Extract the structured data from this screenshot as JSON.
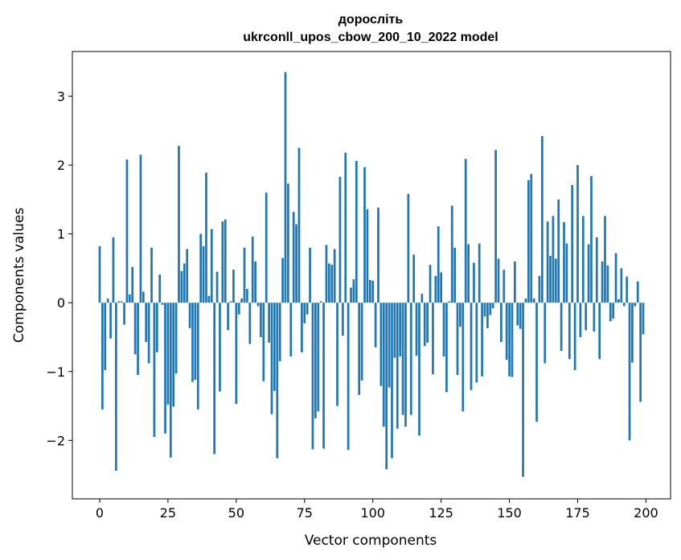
{
  "chart_data": {
    "type": "bar",
    "title": "доросліть",
    "subtitle": "ukrconll_upos_cbow_200_10_2022 model",
    "xlabel": "Vector components",
    "ylabel": "Components values",
    "xlim": [
      -10,
      209
    ],
    "ylim": [
      -2.85,
      3.65
    ],
    "xticks": [
      0,
      25,
      50,
      75,
      100,
      125,
      150,
      175,
      200
    ],
    "yticks": [
      -2,
      -1,
      0,
      1,
      2,
      3
    ],
    "ytick_labels": [
      "−2",
      "−1",
      "0",
      "1",
      "2",
      "3"
    ],
    "bar_color": "#1f77b4",
    "grid": false,
    "x": [
      0,
      1,
      2,
      3,
      4,
      5,
      6,
      7,
      8,
      9,
      10,
      11,
      12,
      13,
      14,
      15,
      16,
      17,
      18,
      19,
      20,
      21,
      22,
      23,
      24,
      25,
      26,
      27,
      28,
      29,
      30,
      31,
      32,
      33,
      34,
      35,
      36,
      37,
      38,
      39,
      40,
      41,
      42,
      43,
      44,
      45,
      46,
      47,
      48,
      49,
      50,
      51,
      52,
      53,
      54,
      55,
      56,
      57,
      58,
      59,
      60,
      61,
      62,
      63,
      64,
      65,
      66,
      67,
      68,
      69,
      70,
      71,
      72,
      73,
      74,
      75,
      76,
      77,
      78,
      79,
      80,
      81,
      82,
      83,
      84,
      85,
      86,
      87,
      88,
      89,
      90,
      91,
      92,
      93,
      94,
      95,
      96,
      97,
      98,
      99,
      100,
      101,
      102,
      103,
      104,
      105,
      106,
      107,
      108,
      109,
      110,
      111,
      112,
      113,
      114,
      115,
      116,
      117,
      118,
      119,
      120,
      121,
      122,
      123,
      124,
      125,
      126,
      127,
      128,
      129,
      130,
      131,
      132,
      133,
      134,
      135,
      136,
      137,
      138,
      139,
      140,
      141,
      142,
      143,
      144,
      145,
      146,
      147,
      148,
      149,
      150,
      151,
      152,
      153,
      154,
      155,
      156,
      157,
      158,
      159,
      160,
      161,
      162,
      163,
      164,
      165,
      166,
      167,
      168,
      169,
      170,
      171,
      172,
      173,
      174,
      175,
      176,
      177,
      178,
      179,
      180,
      181,
      182,
      183,
      184,
      185,
      186,
      187,
      188,
      189,
      190,
      191,
      192,
      193,
      194,
      195,
      196,
      197,
      198,
      199
    ],
    "values": [
      0.82,
      -1.55,
      -0.98,
      0.06,
      -0.52,
      0.95,
      -2.44,
      0.02,
      0.02,
      -0.32,
      2.08,
      0.12,
      0.52,
      -0.75,
      -1.05,
      2.15,
      0.16,
      -0.57,
      -0.88,
      0.8,
      -1.95,
      -0.72,
      0.41,
      -0.03,
      -1.9,
      -1.48,
      -2.25,
      -1.51,
      -1.03,
      2.28,
      0.46,
      0.57,
      0.78,
      -0.37,
      -1.15,
      -1.12,
      -1.55,
      1.0,
      0.82,
      1.89,
      0.1,
      1.07,
      -2.2,
      0.45,
      -1.29,
      1.18,
      1.21,
      -0.4,
      0.02,
      0.48,
      -1.47,
      -0.17,
      0.06,
      0.8,
      0.2,
      -0.6,
      0.96,
      0.6,
      -0.05,
      -0.5,
      -1.14,
      1.6,
      -0.58,
      -1.62,
      -1.28,
      -2.26,
      -0.85,
      0.65,
      3.35,
      1.73,
      -0.78,
      1.32,
      1.14,
      2.25,
      -0.72,
      -0.3,
      -0.17,
      0.8,
      -2.13,
      -1.68,
      -1.58,
      0.02,
      -2.12,
      0.84,
      0.57,
      0.55,
      0.78,
      -1.5,
      1.83,
      -0.48,
      2.18,
      -2.14,
      0.22,
      0.34,
      2.06,
      -1.34,
      -1.13,
      1.97,
      1.36,
      0.33,
      0.32,
      -0.65,
      1.38,
      -1.21,
      -1.8,
      -2.42,
      -1.23,
      -2.26,
      -0.8,
      -1.83,
      -0.78,
      -1.63,
      -1.8,
      1.58,
      -1.63,
      0.7,
      -0.77,
      -1.93,
      0.13,
      -0.63,
      -0.58,
      0.55,
      -1.04,
      0.39,
      1.11,
      0.44,
      -0.78,
      -1.3,
      0.02,
      1.41,
      0.8,
      -1.05,
      -0.35,
      -1.58,
      2.09,
      0.85,
      -1.27,
      0.58,
      -1.16,
      0.86,
      -1.07,
      -0.2,
      -0.37,
      -0.18,
      -0.08,
      2.22,
      0.64,
      -0.57,
      0.48,
      -0.83,
      -1.07,
      -1.08,
      0.6,
      -0.33,
      -0.38,
      -2.53,
      0.06,
      1.78,
      1.87,
      0.06,
      -1.73,
      0.39,
      2.42,
      -0.88,
      1.18,
      0.68,
      1.26,
      0.64,
      1.5,
      -0.7,
      1.17,
      0.86,
      -0.82,
      1.71,
      -0.98,
      2.0,
      -0.5,
      1.26,
      -0.4,
      0.85,
      1.84,
      -0.42,
      0.95,
      -0.82,
      0.6,
      1.26,
      0.54,
      -0.27,
      -0.23,
      0.72,
      0.05,
      0.5,
      -0.05,
      0.38,
      -2.0,
      -0.87,
      -0.05,
      0.31,
      -1.44,
      -0.46
    ]
  }
}
